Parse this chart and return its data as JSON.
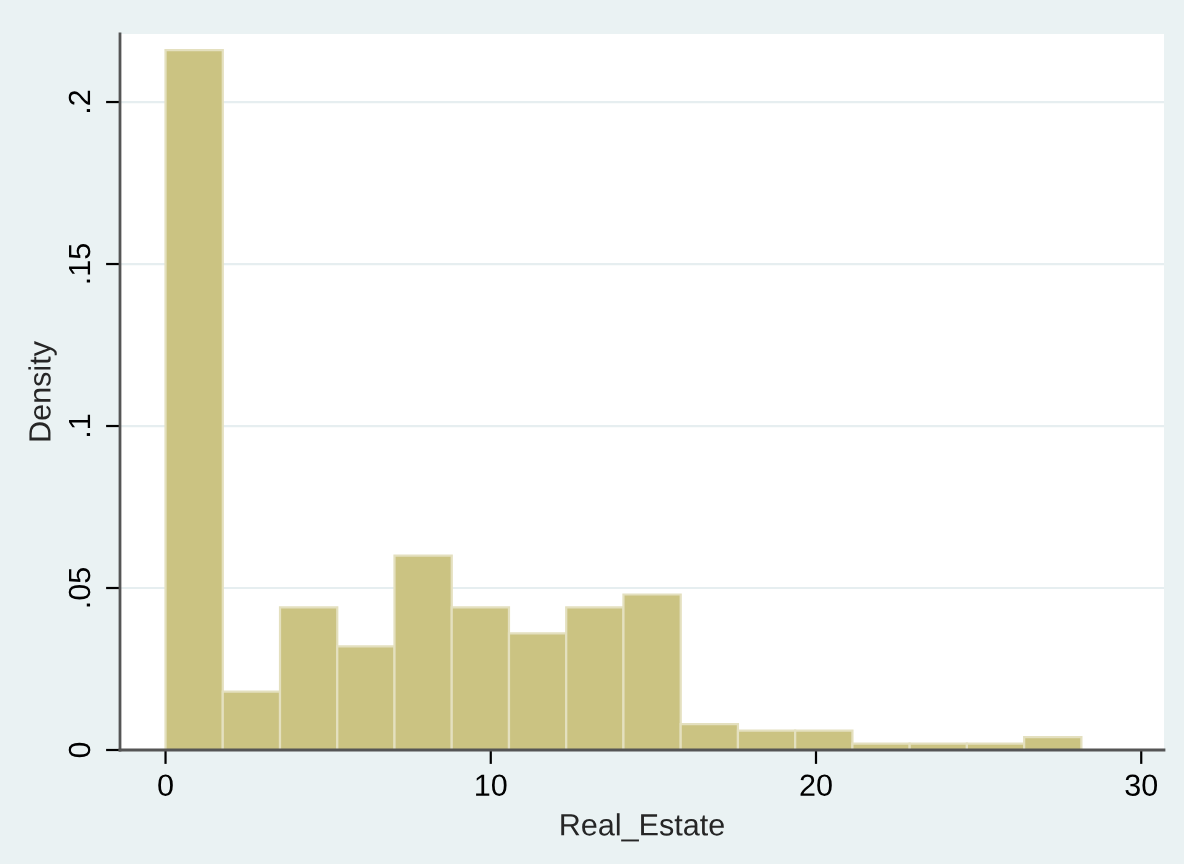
{
  "chart_data": {
    "type": "histogram",
    "xlabel": "Real_Estate",
    "ylabel": "Density",
    "bins": [
      0,
      1.76,
      3.52,
      5.28,
      7.04,
      8.8,
      10.56,
      12.32,
      14.08,
      15.84,
      17.6,
      19.36,
      21.12,
      22.88,
      24.64,
      26.4,
      28.16
    ],
    "values": [
      0.216,
      0.018,
      0.044,
      0.032,
      0.06,
      0.044,
      0.036,
      0.044,
      0.048,
      0.008,
      0.006,
      0.006,
      0.002,
      0.002,
      0.002,
      0.004
    ],
    "color": "#cbc382",
    "xlim": [
      -1.4,
      30.7
    ],
    "ylim": [
      0,
      0.221
    ],
    "xticks": [
      0,
      10,
      20,
      30
    ],
    "yticks": [
      0,
      {
        "value": 0.05,
        "label": ".05"
      },
      {
        "value": 0.1,
        "label": ".1"
      },
      {
        "value": 0.15,
        "label": ".15"
      },
      {
        "value": 0.2,
        "label": ".2"
      }
    ],
    "grid": "y"
  }
}
